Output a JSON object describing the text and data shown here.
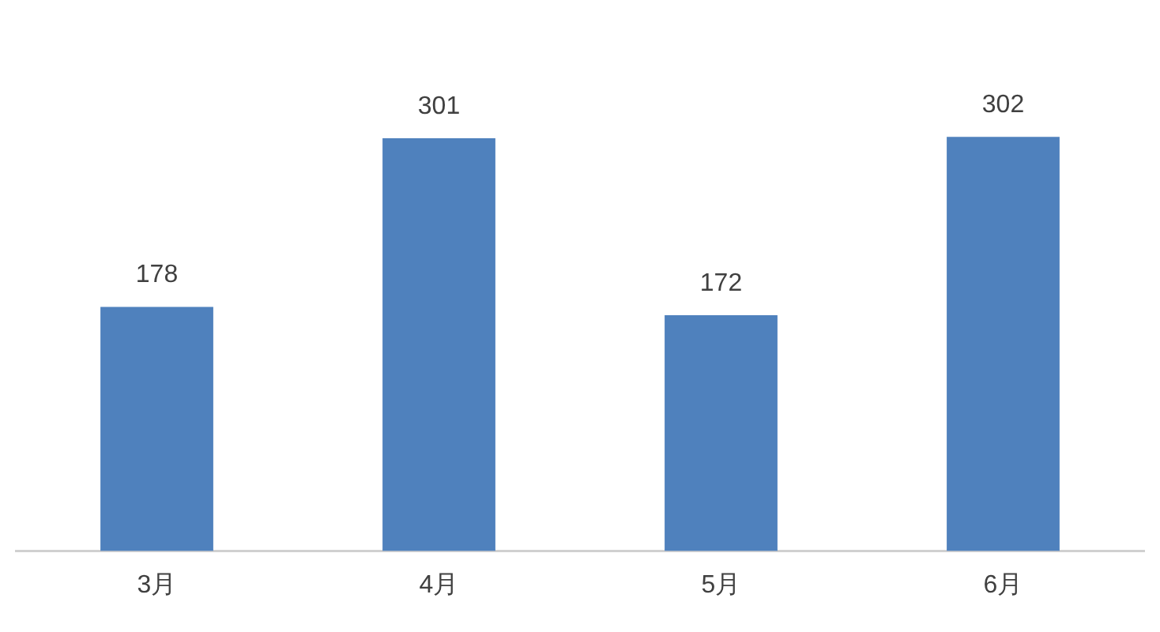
{
  "chart_data": {
    "type": "bar",
    "categories": [
      "3月",
      "4月",
      "5月",
      "6月"
    ],
    "values": [
      178,
      301,
      172,
      302
    ],
    "color": "#4f81bd",
    "data_labels": true,
    "grid": false,
    "legend": false
  }
}
